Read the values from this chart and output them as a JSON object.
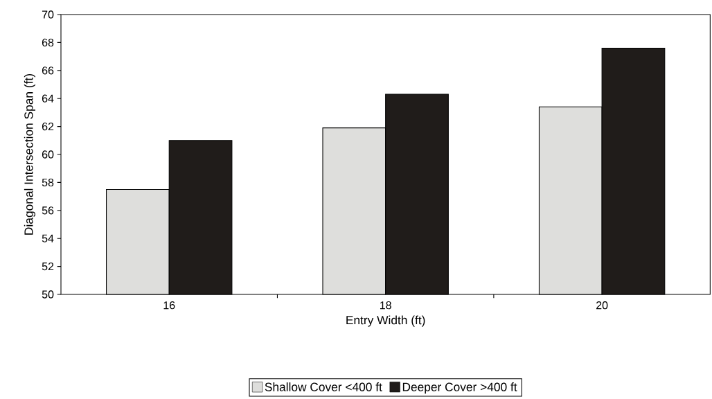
{
  "chart_data": {
    "type": "bar",
    "xlabel": "Entry Width (ft)",
    "ylabel": "Diagonal Intersection Span (ft)",
    "categories": [
      "16",
      "18",
      "20"
    ],
    "series": [
      {
        "name": "Shallow Cover <400 ft",
        "color": "#dededc",
        "values": [
          57.5,
          61.9,
          63.4
        ]
      },
      {
        "name": "Deeper Cover >400 ft",
        "color": "#201c1a",
        "values": [
          61.0,
          64.3,
          67.6
        ]
      }
    ],
    "ylim": [
      50,
      70
    ],
    "yticks": [
      50,
      52,
      54,
      56,
      58,
      60,
      62,
      64,
      66,
      68,
      70
    ],
    "grid": false,
    "legend": "bottom"
  }
}
